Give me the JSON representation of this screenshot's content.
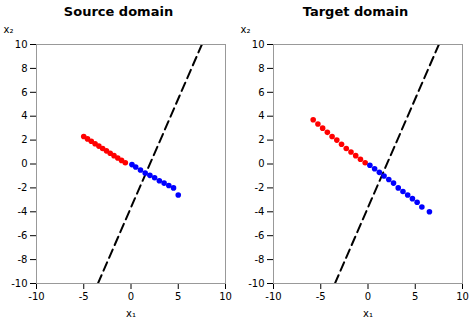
{
  "chart_data": [
    {
      "type": "scatter",
      "title": "Source domain",
      "xlabel": "x₁",
      "ylabel": "x₂",
      "xlim": [
        -10,
        10
      ],
      "ylim": [
        -10,
        10
      ],
      "xticks": [
        -10,
        -5,
        0,
        5,
        10
      ],
      "yticks": [
        -10,
        -8,
        -6,
        -4,
        -2,
        0,
        2,
        4,
        6,
        8,
        10
      ],
      "grid": false,
      "series": [
        {
          "type": "line",
          "line_style": "dashed",
          "color": "#000000",
          "x": [
            -3.5,
            7.5
          ],
          "values": [
            -10.0,
            10.0
          ]
        },
        {
          "type": "scatter",
          "color": "#FF0000",
          "x": [
            -5.0,
            -4.6,
            -4.2,
            -3.8,
            -3.4,
            -3.0,
            -2.6,
            -2.2,
            -1.8,
            -1.4,
            -1.0,
            -0.6
          ],
          "values": [
            2.3,
            2.1,
            1.9,
            1.7,
            1.5,
            1.3,
            1.1,
            0.9,
            0.7,
            0.5,
            0.3,
            0.1
          ]
        },
        {
          "type": "scatter",
          "color": "#0000FF",
          "x": [
            0.1,
            0.5,
            1.0,
            1.5,
            2.0,
            2.5,
            3.0,
            3.5,
            4.0,
            4.5,
            5.0
          ],
          "values": [
            -0.05,
            -0.25,
            -0.5,
            -0.75,
            -0.95,
            -1.15,
            -1.4,
            -1.6,
            -1.8,
            -2.0,
            -2.6
          ]
        }
      ]
    },
    {
      "type": "scatter",
      "title": "Target domain",
      "xlabel": "x₁",
      "ylabel": "x₂",
      "xlim": [
        -10,
        10
      ],
      "ylim": [
        -10,
        10
      ],
      "xticks": [
        -10,
        -5,
        0,
        5,
        10
      ],
      "yticks": [
        -10,
        -8,
        -6,
        -4,
        -2,
        0,
        2,
        4,
        6,
        8,
        10
      ],
      "grid": false,
      "series": [
        {
          "type": "line",
          "line_style": "dashed",
          "color": "#000000",
          "x": [
            -3.5,
            7.5
          ],
          "values": [
            -10.0,
            10.0
          ]
        },
        {
          "type": "scatter",
          "color": "#FF0000",
          "x": [
            -5.8,
            -5.3,
            -4.8,
            -4.3,
            -3.8,
            -3.3,
            -2.8,
            -2.3,
            -1.8,
            -1.3,
            -0.8,
            -0.3
          ],
          "values": [
            3.7,
            3.35,
            3.0,
            2.65,
            2.3,
            2.0,
            1.65,
            1.3,
            1.0,
            0.7,
            0.4,
            0.1
          ]
        },
        {
          "type": "scatter",
          "color": "#0000FF",
          "x": [
            0.2,
            0.7,
            1.2,
            1.7,
            2.2,
            2.7,
            3.2,
            3.7,
            4.2,
            4.7,
            5.2,
            5.7,
            6.5
          ],
          "values": [
            -0.1,
            -0.4,
            -0.7,
            -1.0,
            -1.3,
            -1.6,
            -2.0,
            -2.3,
            -2.6,
            -2.9,
            -3.2,
            -3.6,
            -4.0
          ]
        }
      ]
    }
  ]
}
